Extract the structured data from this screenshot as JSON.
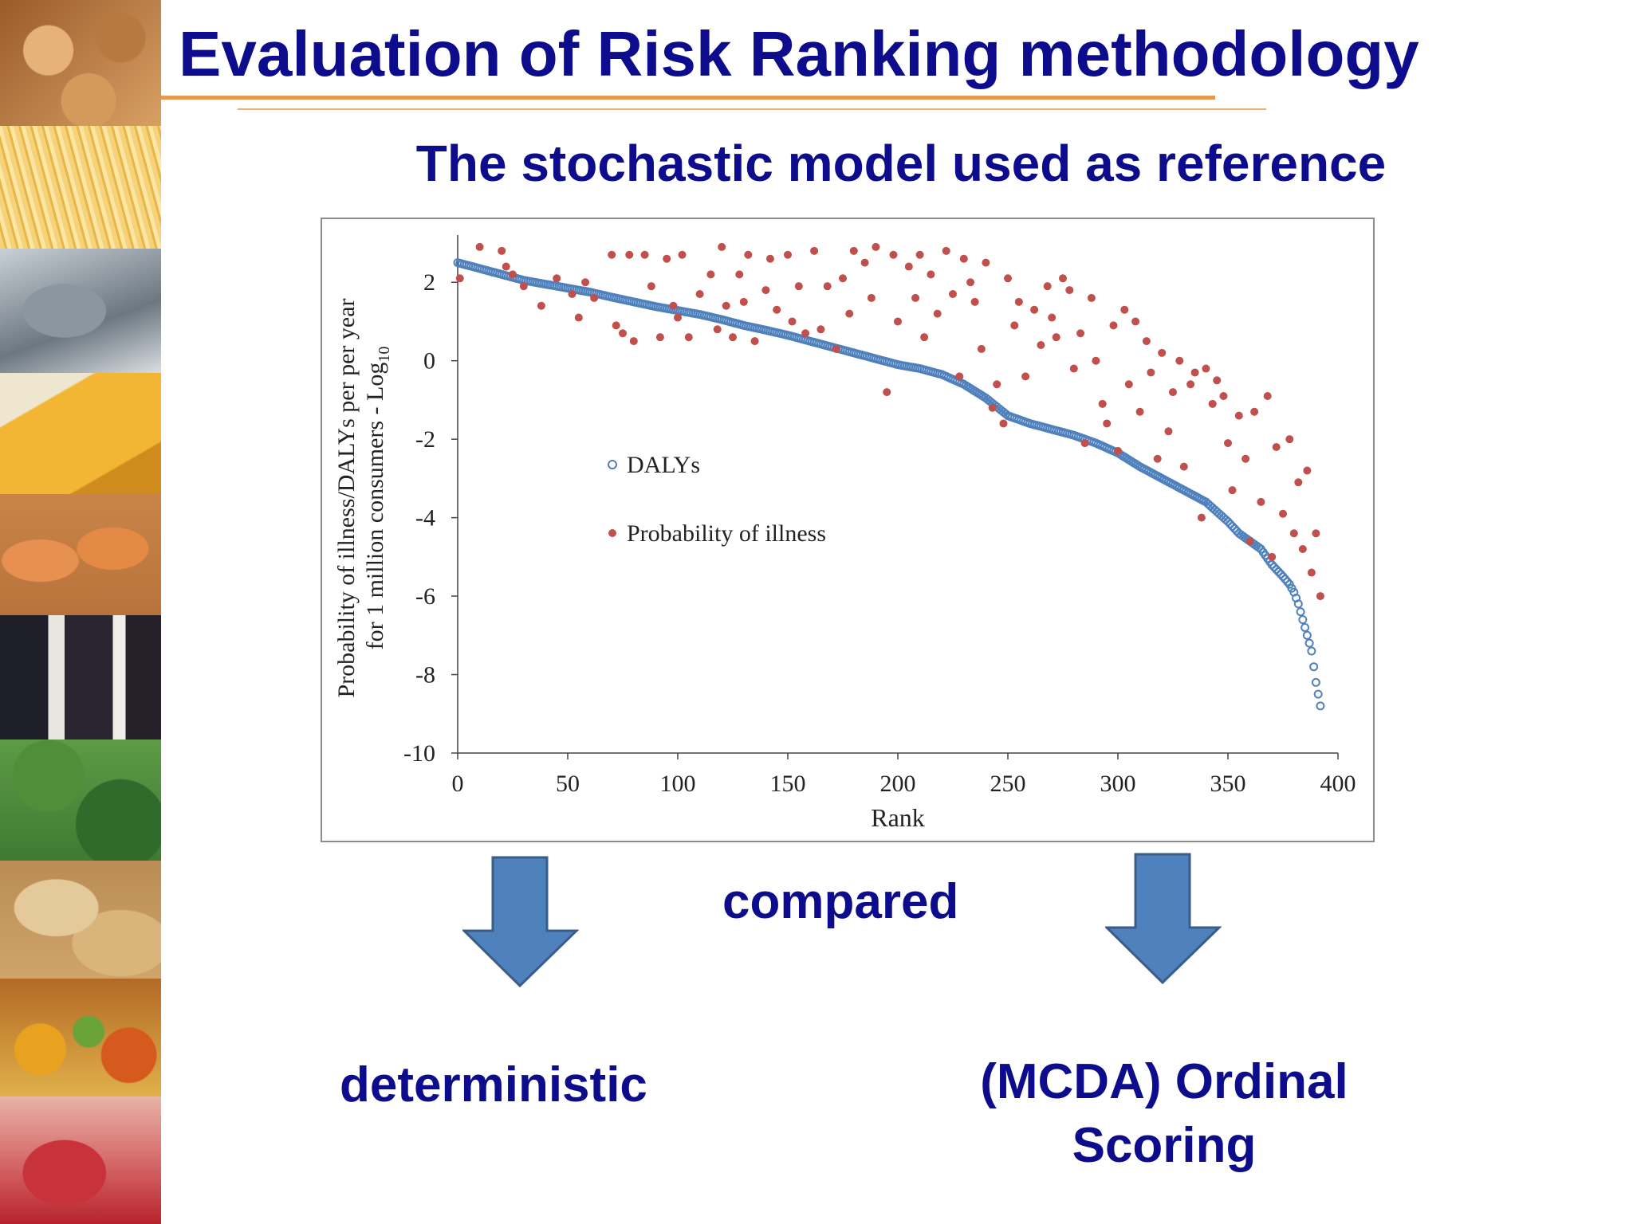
{
  "slide": {
    "title": "Evaluation of Risk Ranking methodology",
    "subtitle": "The stochastic model used as reference",
    "label_compared": "compared",
    "label_deterministic": "deterministic",
    "label_mcda_line1": "(MCDA) Ordinal",
    "label_mcda_line2": "Scoring",
    "title_color": "#0c0c8c",
    "arrow_color": "#4f81bd"
  },
  "food_strip": [
    "nuts",
    "pasta",
    "fish",
    "cheese",
    "eggs",
    "wine",
    "salad",
    "bread",
    "fruit",
    "ham"
  ],
  "chart_data": {
    "type": "scatter",
    "xlabel": "Rank",
    "ylabel_line1": "Probability of illness/DALYs per per year",
    "ylabel_line2": "for 1 million consumers - Log",
    "ylabel_subscript": "10",
    "xlim": [
      0,
      400
    ],
    "ylim": [
      -10,
      3
    ],
    "xticks": [
      0,
      50,
      100,
      150,
      200,
      250,
      300,
      350,
      400
    ],
    "yticks": [
      2,
      0,
      -2,
      -4,
      -6,
      -8,
      -10
    ],
    "grid": false,
    "legend_position": "center-left",
    "series": [
      {
        "name": "DALYs",
        "marker": "open-circle",
        "color": "#4f81bd",
        "description_points": "monotonically decreasing curve, one point per rank",
        "x": [
          0,
          10,
          20,
          30,
          40,
          50,
          60,
          70,
          80,
          90,
          100,
          110,
          120,
          130,
          140,
          150,
          160,
          170,
          180,
          190,
          200,
          210,
          220,
          230,
          240,
          250,
          260,
          270,
          280,
          290,
          300,
          310,
          320,
          330,
          340,
          350,
          355,
          360,
          365,
          370,
          375,
          378,
          380,
          382,
          384,
          386,
          388,
          390,
          392
        ],
        "y": [
          2.5,
          2.35,
          2.2,
          2.05,
          1.95,
          1.85,
          1.75,
          1.62,
          1.5,
          1.38,
          1.28,
          1.18,
          1.05,
          0.9,
          0.78,
          0.65,
          0.5,
          0.35,
          0.2,
          0.05,
          -0.1,
          -0.2,
          -0.35,
          -0.6,
          -0.95,
          -1.4,
          -1.6,
          -1.75,
          -1.9,
          -2.1,
          -2.35,
          -2.7,
          -3.0,
          -3.3,
          -3.6,
          -4.1,
          -4.4,
          -4.6,
          -4.8,
          -5.2,
          -5.5,
          -5.7,
          -5.9,
          -6.2,
          -6.6,
          -7.0,
          -7.4,
          -8.2,
          -8.8
        ]
      },
      {
        "name": "Probability of illness",
        "marker": "filled-circle",
        "color": "#c0504d",
        "x": [
          1,
          10,
          20,
          22,
          25,
          30,
          38,
          45,
          52,
          55,
          58,
          62,
          70,
          72,
          75,
          78,
          80,
          85,
          88,
          92,
          95,
          98,
          100,
          102,
          105,
          110,
          115,
          118,
          120,
          122,
          125,
          128,
          130,
          132,
          135,
          140,
          142,
          145,
          150,
          152,
          155,
          158,
          162,
          165,
          168,
          172,
          175,
          178,
          180,
          185,
          188,
          190,
          195,
          198,
          200,
          205,
          208,
          210,
          212,
          215,
          218,
          222,
          225,
          228,
          230,
          233,
          235,
          238,
          240,
          243,
          245,
          248,
          250,
          253,
          255,
          258,
          262,
          265,
          268,
          270,
          272,
          275,
          278,
          280,
          283,
          285,
          288,
          290,
          293,
          295,
          298,
          300,
          303,
          305,
          308,
          310,
          313,
          315,
          318,
          320,
          323,
          325,
          328,
          330,
          333,
          335,
          338,
          340,
          343,
          345,
          348,
          350,
          352,
          355,
          358,
          360,
          362,
          365,
          368,
          370,
          372,
          375,
          378,
          380,
          382,
          384,
          386,
          388,
          390,
          392
        ],
        "y": [
          2.1,
          2.9,
          2.8,
          2.4,
          2.2,
          1.9,
          1.4,
          2.1,
          1.7,
          1.1,
          2.0,
          1.6,
          2.7,
          0.9,
          0.7,
          2.7,
          0.5,
          2.7,
          1.9,
          0.6,
          2.6,
          1.4,
          1.1,
          2.7,
          0.6,
          1.7,
          2.2,
          0.8,
          2.9,
          1.4,
          0.6,
          2.2,
          1.5,
          2.7,
          0.5,
          1.8,
          2.6,
          1.3,
          2.7,
          1.0,
          1.9,
          0.7,
          2.8,
          0.8,
          1.9,
          0.3,
          2.1,
          1.2,
          2.8,
          2.5,
          1.6,
          2.9,
          -0.8,
          2.7,
          1.0,
          2.4,
          1.6,
          2.7,
          0.6,
          2.2,
          1.2,
          2.8,
          1.7,
          -0.4,
          2.6,
          2.0,
          1.5,
          0.3,
          2.5,
          -1.2,
          -0.6,
          -1.6,
          2.1,
          0.9,
          1.5,
          -0.4,
          1.3,
          0.4,
          1.9,
          1.1,
          0.6,
          2.1,
          1.8,
          -0.2,
          0.7,
          -2.1,
          1.6,
          0.0,
          -1.1,
          -1.6,
          0.9,
          -2.3,
          1.3,
          -0.6,
          1.0,
          -1.3,
          0.5,
          -0.3,
          -2.5,
          0.2,
          -1.8,
          -0.8,
          0.0,
          -2.7,
          -0.6,
          -0.3,
          -4.0,
          -0.2,
          -1.1,
          -0.5,
          -0.9,
          -2.1,
          -3.3,
          -1.4,
          -2.5,
          -4.6,
          -1.3,
          -3.6,
          -0.9,
          -5.0,
          -2.2,
          -3.9,
          -2.0,
          -4.4,
          -3.1,
          -4.8,
          -2.8,
          -5.4,
          -4.4,
          -6.0
        ]
      }
    ]
  }
}
